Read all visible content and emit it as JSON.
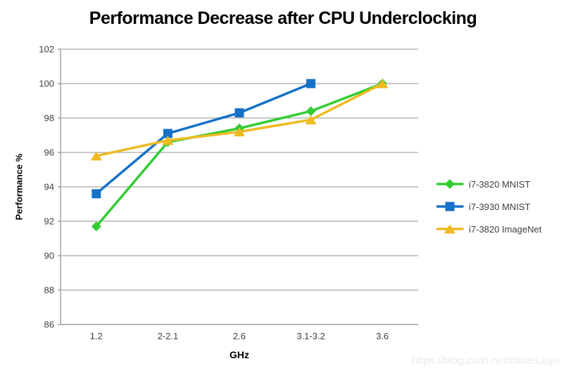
{
  "chart_data": {
    "type": "line",
    "title": "Performance Decrease after CPU Underclocking",
    "xlabel": "GHz",
    "ylabel": "Performance %",
    "categories": [
      "1.2",
      "2-2.1",
      "2.6",
      "3.1-3.2",
      "3.6"
    ],
    "ylim": [
      86,
      102
    ],
    "y_ticks": [
      86,
      88,
      90,
      92,
      94,
      96,
      98,
      100,
      102
    ],
    "grid": true,
    "legend_position": "right",
    "series": [
      {
        "name": "i7-3820 MNIST",
        "color": "#33cc33",
        "marker": "diamond",
        "values": [
          91.7,
          96.6,
          97.4,
          98.4,
          100
        ]
      },
      {
        "name": "i7-3930 MNIST",
        "color": "#1572c8",
        "marker": "square",
        "values": [
          93.6,
          97.1,
          98.3,
          100,
          null
        ]
      },
      {
        "name": "i7-3820 ImageNet",
        "color": "#efb920",
        "marker": "triangle",
        "values": [
          95.8,
          96.7,
          97.2,
          97.9,
          100
        ]
      }
    ]
  },
  "colors": {
    "gridline": "#a6a6a6",
    "axis": "#8f8f8f",
    "tick_label": "#3f3f3f",
    "title": "#000000",
    "watermark": "#eaeaea"
  },
  "watermark": "https://blog.csdn.net/danteLiujie"
}
